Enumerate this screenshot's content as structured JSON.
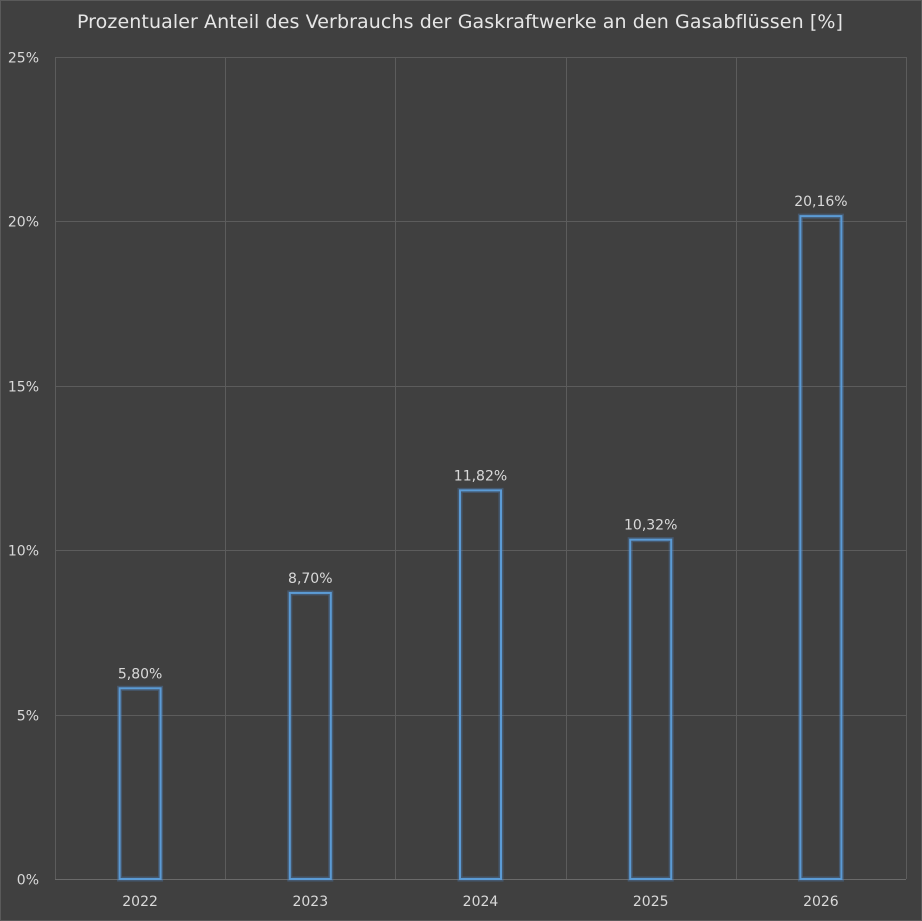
{
  "chart_data": {
    "type": "bar",
    "title": "Prozentualer Anteil des Verbrauchs der Gaskraftwerke an den Gasabflüssen [%]",
    "categories": [
      "2022",
      "2023",
      "2024",
      "2025",
      "2026"
    ],
    "values": [
      5.8,
      8.7,
      11.82,
      10.32,
      20.16
    ],
    "data_labels": [
      "5,80%",
      "8,70%",
      "11,82%",
      "10,32%",
      "20,16%"
    ],
    "ylim": [
      0,
      25
    ],
    "yticks": [
      0,
      5,
      10,
      15,
      20,
      25
    ],
    "ytick_labels": [
      "0%",
      "5%",
      "10%",
      "15%",
      "20%",
      "25%"
    ],
    "grid": true,
    "legend": "none",
    "colors": {
      "background": "#404040",
      "bar_outline": "#5b9bd5",
      "grid": "#5c5c5c",
      "text": "#d9d9d9"
    }
  }
}
